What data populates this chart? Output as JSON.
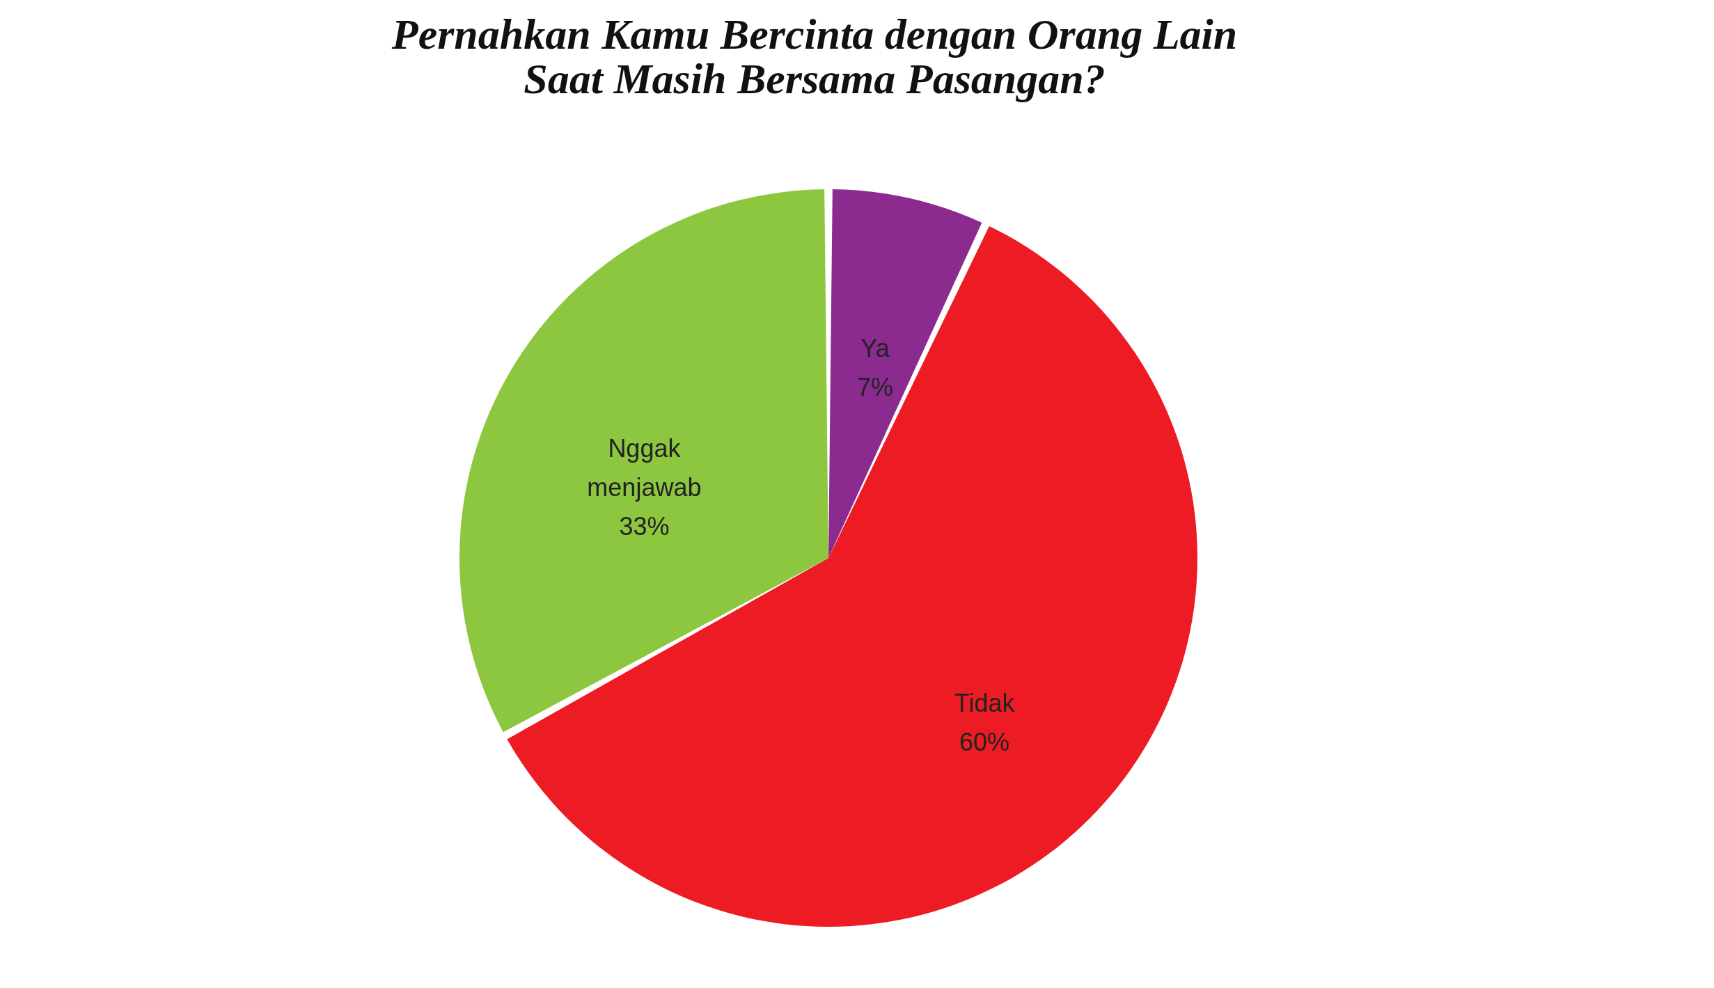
{
  "chart_data": {
    "type": "pie",
    "title": [
      "Pernahkan Kamu Bercinta dengan Orang Lain",
      "Saat Masih Bersama Pasangan?"
    ],
    "categories": [
      "Ya",
      "Tidak",
      "Nggak menjawab"
    ],
    "values": [
      7,
      60,
      33
    ],
    "colors": [
      "#8b2a8f",
      "#ed1c24",
      "#8dc63f"
    ],
    "value_labels": [
      "7%",
      "60%",
      "33%"
    ],
    "legend": false
  }
}
